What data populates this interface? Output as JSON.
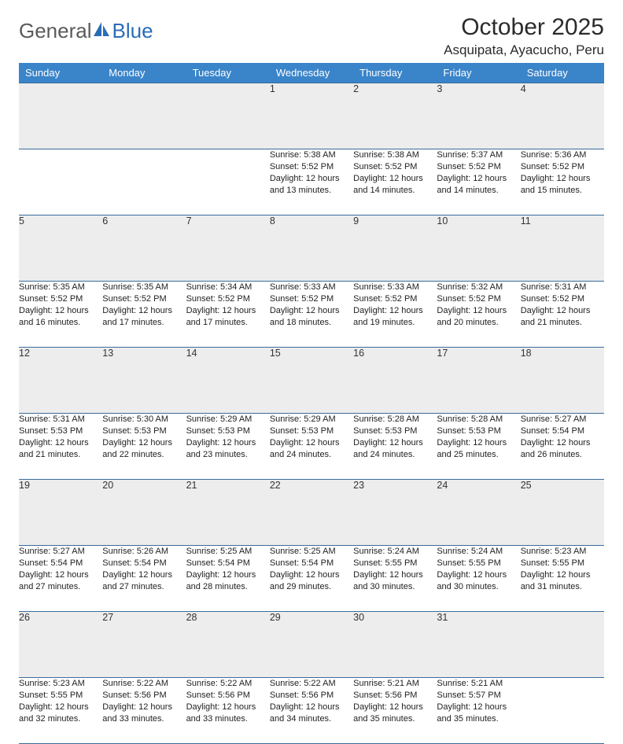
{
  "brand": {
    "part1": "General",
    "part2": "Blue",
    "accent_color": "#2a6db5",
    "text_color": "#5a5a5a"
  },
  "title": "October 2025",
  "location": "Asquipata, Ayacucho, Peru",
  "header_bg": "#3a84c9",
  "header_fg": "#ffffff",
  "daynum_bg": "#ededed",
  "border_color": "#3a6b9a",
  "days": [
    "Sunday",
    "Monday",
    "Tuesday",
    "Wednesday",
    "Thursday",
    "Friday",
    "Saturday"
  ],
  "weeks": [
    [
      null,
      null,
      null,
      {
        "n": "1",
        "sr": "5:38 AM",
        "ss": "5:52 PM",
        "dl": "12 hours and 13 minutes."
      },
      {
        "n": "2",
        "sr": "5:38 AM",
        "ss": "5:52 PM",
        "dl": "12 hours and 14 minutes."
      },
      {
        "n": "3",
        "sr": "5:37 AM",
        "ss": "5:52 PM",
        "dl": "12 hours and 14 minutes."
      },
      {
        "n": "4",
        "sr": "5:36 AM",
        "ss": "5:52 PM",
        "dl": "12 hours and 15 minutes."
      }
    ],
    [
      {
        "n": "5",
        "sr": "5:35 AM",
        "ss": "5:52 PM",
        "dl": "12 hours and 16 minutes."
      },
      {
        "n": "6",
        "sr": "5:35 AM",
        "ss": "5:52 PM",
        "dl": "12 hours and 17 minutes."
      },
      {
        "n": "7",
        "sr": "5:34 AM",
        "ss": "5:52 PM",
        "dl": "12 hours and 17 minutes."
      },
      {
        "n": "8",
        "sr": "5:33 AM",
        "ss": "5:52 PM",
        "dl": "12 hours and 18 minutes."
      },
      {
        "n": "9",
        "sr": "5:33 AM",
        "ss": "5:52 PM",
        "dl": "12 hours and 19 minutes."
      },
      {
        "n": "10",
        "sr": "5:32 AM",
        "ss": "5:52 PM",
        "dl": "12 hours and 20 minutes."
      },
      {
        "n": "11",
        "sr": "5:31 AM",
        "ss": "5:52 PM",
        "dl": "12 hours and 21 minutes."
      }
    ],
    [
      {
        "n": "12",
        "sr": "5:31 AM",
        "ss": "5:53 PM",
        "dl": "12 hours and 21 minutes."
      },
      {
        "n": "13",
        "sr": "5:30 AM",
        "ss": "5:53 PM",
        "dl": "12 hours and 22 minutes."
      },
      {
        "n": "14",
        "sr": "5:29 AM",
        "ss": "5:53 PM",
        "dl": "12 hours and 23 minutes."
      },
      {
        "n": "15",
        "sr": "5:29 AM",
        "ss": "5:53 PM",
        "dl": "12 hours and 24 minutes."
      },
      {
        "n": "16",
        "sr": "5:28 AM",
        "ss": "5:53 PM",
        "dl": "12 hours and 24 minutes."
      },
      {
        "n": "17",
        "sr": "5:28 AM",
        "ss": "5:53 PM",
        "dl": "12 hours and 25 minutes."
      },
      {
        "n": "18",
        "sr": "5:27 AM",
        "ss": "5:54 PM",
        "dl": "12 hours and 26 minutes."
      }
    ],
    [
      {
        "n": "19",
        "sr": "5:27 AM",
        "ss": "5:54 PM",
        "dl": "12 hours and 27 minutes."
      },
      {
        "n": "20",
        "sr": "5:26 AM",
        "ss": "5:54 PM",
        "dl": "12 hours and 27 minutes."
      },
      {
        "n": "21",
        "sr": "5:25 AM",
        "ss": "5:54 PM",
        "dl": "12 hours and 28 minutes."
      },
      {
        "n": "22",
        "sr": "5:25 AM",
        "ss": "5:54 PM",
        "dl": "12 hours and 29 minutes."
      },
      {
        "n": "23",
        "sr": "5:24 AM",
        "ss": "5:55 PM",
        "dl": "12 hours and 30 minutes."
      },
      {
        "n": "24",
        "sr": "5:24 AM",
        "ss": "5:55 PM",
        "dl": "12 hours and 30 minutes."
      },
      {
        "n": "25",
        "sr": "5:23 AM",
        "ss": "5:55 PM",
        "dl": "12 hours and 31 minutes."
      }
    ],
    [
      {
        "n": "26",
        "sr": "5:23 AM",
        "ss": "5:55 PM",
        "dl": "12 hours and 32 minutes."
      },
      {
        "n": "27",
        "sr": "5:22 AM",
        "ss": "5:56 PM",
        "dl": "12 hours and 33 minutes."
      },
      {
        "n": "28",
        "sr": "5:22 AM",
        "ss": "5:56 PM",
        "dl": "12 hours and 33 minutes."
      },
      {
        "n": "29",
        "sr": "5:22 AM",
        "ss": "5:56 PM",
        "dl": "12 hours and 34 minutes."
      },
      {
        "n": "30",
        "sr": "5:21 AM",
        "ss": "5:56 PM",
        "dl": "12 hours and 35 minutes."
      },
      {
        "n": "31",
        "sr": "5:21 AM",
        "ss": "5:57 PM",
        "dl": "12 hours and 35 minutes."
      },
      null
    ]
  ],
  "labels": {
    "sunrise": "Sunrise:",
    "sunset": "Sunset:",
    "daylight": "Daylight:"
  }
}
